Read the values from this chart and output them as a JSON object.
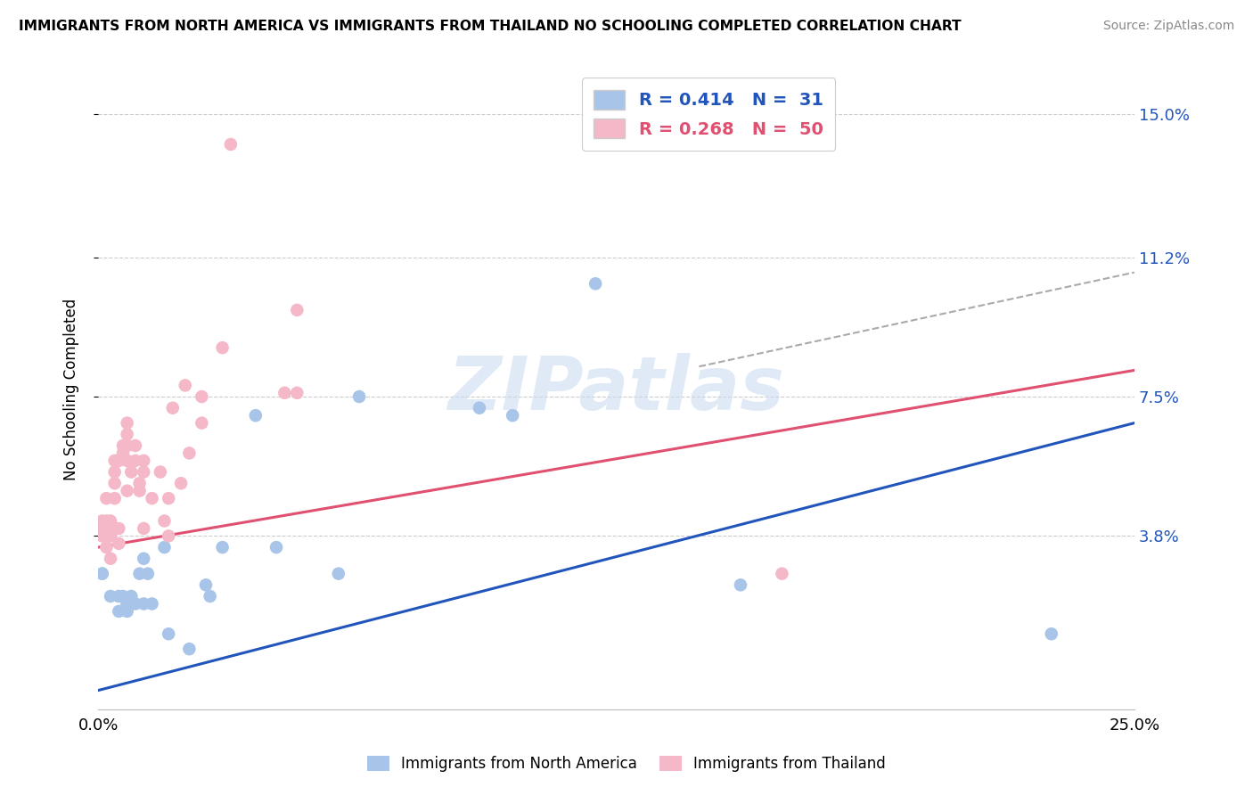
{
  "title": "IMMIGRANTS FROM NORTH AMERICA VS IMMIGRANTS FROM THAILAND NO SCHOOLING COMPLETED CORRELATION CHART",
  "source": "Source: ZipAtlas.com",
  "ylabel": "No Schooling Completed",
  "xlim": [
    0.0,
    0.25
  ],
  "ylim": [
    -0.008,
    0.162
  ],
  "ytick_labels": [
    "3.8%",
    "7.5%",
    "11.2%",
    "15.0%"
  ],
  "ytick_values": [
    0.038,
    0.075,
    0.112,
    0.15
  ],
  "xtick_labels": [
    "0.0%",
    "25.0%"
  ],
  "xtick_values": [
    0.0,
    0.25
  ],
  "blue_R": 0.414,
  "blue_N": 31,
  "pink_R": 0.268,
  "pink_N": 50,
  "blue_color": "#a8c4e8",
  "pink_color": "#f5b8c8",
  "blue_line_color": "#2255bb",
  "pink_line_color": "#e05070",
  "blue_dashed_color": "#aaaaaa",
  "watermark": "ZIPatlas",
  "blue_line_x0": 0.0,
  "blue_line_y0": -0.003,
  "blue_line_x1": 0.25,
  "blue_line_y1": 0.068,
  "pink_line_x0": 0.0,
  "pink_line_y0": 0.035,
  "pink_line_x1": 0.25,
  "pink_line_y1": 0.082,
  "dashed_line_x0": 0.145,
  "dashed_line_y0": 0.083,
  "dashed_line_x1": 0.25,
  "dashed_line_y1": 0.108,
  "blue_points_x": [
    0.001,
    0.001,
    0.003,
    0.005,
    0.005,
    0.006,
    0.007,
    0.007,
    0.007,
    0.008,
    0.009,
    0.01,
    0.011,
    0.011,
    0.012,
    0.013,
    0.016,
    0.017,
    0.022,
    0.026,
    0.027,
    0.03,
    0.038,
    0.043,
    0.058,
    0.063,
    0.092,
    0.1,
    0.12,
    0.155,
    0.23
  ],
  "blue_points_y": [
    0.028,
    0.028,
    0.022,
    0.018,
    0.022,
    0.022,
    0.018,
    0.02,
    0.02,
    0.022,
    0.02,
    0.028,
    0.02,
    0.032,
    0.028,
    0.02,
    0.035,
    0.012,
    0.008,
    0.025,
    0.022,
    0.035,
    0.07,
    0.035,
    0.028,
    0.075,
    0.072,
    0.07,
    0.105,
    0.025,
    0.012
  ],
  "pink_points_x": [
    0.001,
    0.001,
    0.001,
    0.002,
    0.002,
    0.002,
    0.003,
    0.003,
    0.003,
    0.003,
    0.004,
    0.004,
    0.004,
    0.004,
    0.004,
    0.005,
    0.005,
    0.005,
    0.006,
    0.006,
    0.007,
    0.007,
    0.007,
    0.007,
    0.007,
    0.008,
    0.009,
    0.009,
    0.01,
    0.01,
    0.011,
    0.011,
    0.011,
    0.013,
    0.015,
    0.016,
    0.017,
    0.017,
    0.018,
    0.02,
    0.021,
    0.022,
    0.025,
    0.025,
    0.03,
    0.032,
    0.045,
    0.048,
    0.048,
    0.165
  ],
  "pink_points_y": [
    0.038,
    0.04,
    0.042,
    0.035,
    0.042,
    0.048,
    0.032,
    0.038,
    0.04,
    0.042,
    0.04,
    0.048,
    0.052,
    0.055,
    0.058,
    0.058,
    0.036,
    0.04,
    0.06,
    0.062,
    0.05,
    0.058,
    0.062,
    0.065,
    0.068,
    0.055,
    0.058,
    0.062,
    0.05,
    0.052,
    0.04,
    0.055,
    0.058,
    0.048,
    0.055,
    0.042,
    0.038,
    0.048,
    0.072,
    0.052,
    0.078,
    0.06,
    0.068,
    0.075,
    0.088,
    0.142,
    0.076,
    0.076,
    0.098,
    0.028
  ],
  "background_color": "#ffffff",
  "grid_color": "#cccccc"
}
